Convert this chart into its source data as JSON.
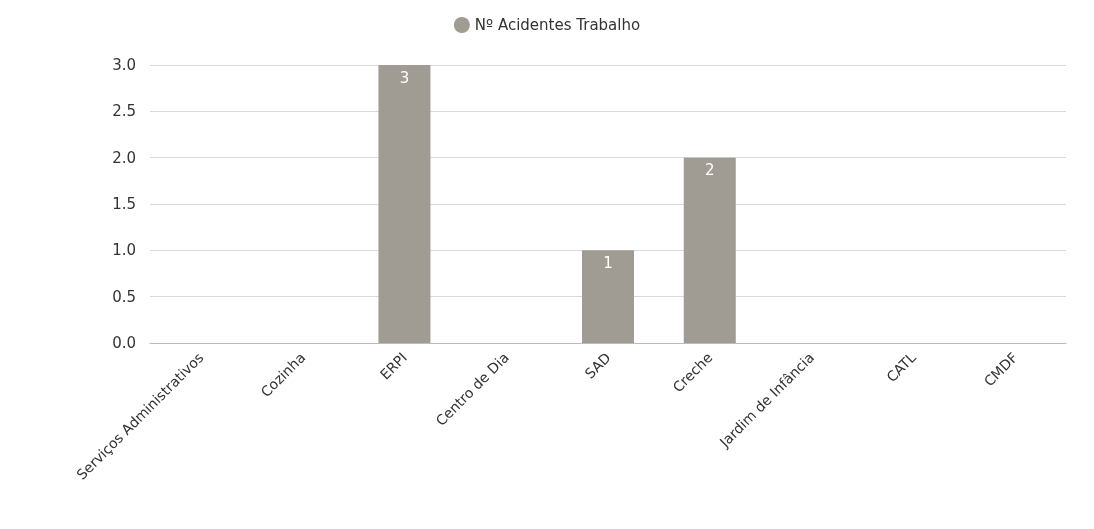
{
  "chart_data": {
    "type": "bar",
    "categories": [
      "Serviços Administrativos",
      "Cozinha",
      "ERPI",
      "Centro de Dia",
      "SAD",
      "Creche",
      "Jardim de Infância",
      "CATL",
      "CMDF"
    ],
    "series": [
      {
        "name": "Nº Acidentes Trabalho",
        "color": "#a09b93",
        "values": [
          0,
          0,
          3,
          0,
          1,
          2,
          0,
          0,
          0
        ],
        "value_labels": [
          null,
          null,
          "3",
          null,
          "1",
          "2",
          null,
          null,
          null
        ]
      }
    ],
    "ylim": [
      0,
      3
    ],
    "yticks": [
      {
        "value": 0,
        "label": "0.0"
      },
      {
        "value": 0.5,
        "label": "0.5"
      },
      {
        "value": 1,
        "label": "1.0"
      },
      {
        "value": 1.5,
        "label": "1.5"
      },
      {
        "value": 2,
        "label": "2.0"
      },
      {
        "value": 2.5,
        "label": "2.5"
      },
      {
        "value": 3,
        "label": "3.0"
      }
    ],
    "grid": "y",
    "legend": "top"
  }
}
